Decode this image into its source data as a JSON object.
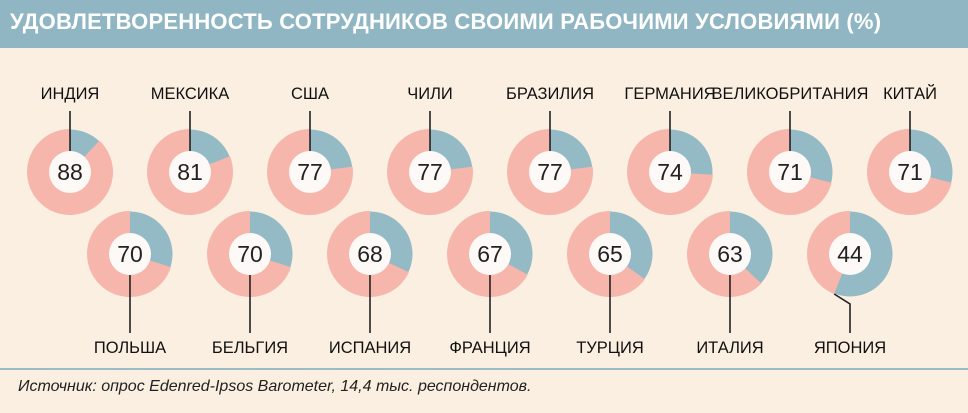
{
  "header": {
    "title": "УДОВЛЕТВОРЕННОСТЬ СОТРУДНИКОВ СВОИМИ РАБОЧИМИ УСЛОВИЯМИ (%)"
  },
  "footer": {
    "source": "Источник: опрос Edenred-Ipsos Barometer, 14,4 тыс. респондентов."
  },
  "colors": {
    "background": "#fbefe1",
    "header_bg": "#8fb6c2",
    "satisfied": "#f6b6ab",
    "remainder": "#94bac6",
    "center": "#fdf9f6",
    "leader_line": "#222222"
  },
  "chart_data": {
    "type": "pie",
    "chart_style": "donut",
    "unit": "%",
    "categories": [
      "ИНДИЯ",
      "МЕКСИКА",
      "США",
      "ЧИЛИ",
      "БРАЗИЛИЯ",
      "ГЕРМАНИЯ",
      "ВЕЛИКОБРИТАНИЯ",
      "КИТАЙ",
      "ПОЛЬША",
      "БЕЛЬГИЯ",
      "ИСПАНИЯ",
      "ФРАНЦИЯ",
      "ТУРЦИЯ",
      "ИТАЛИЯ",
      "ЯПОНИЯ"
    ],
    "values": [
      88,
      81,
      77,
      77,
      77,
      74,
      71,
      71,
      70,
      70,
      68,
      67,
      65,
      63,
      44
    ],
    "value_labels": [
      "88",
      "81",
      "77",
      "77",
      "77",
      "74",
      "71",
      "71",
      "70",
      "70",
      "68",
      "67",
      "65",
      "63",
      "44"
    ],
    "legend": "none",
    "grid": false
  }
}
